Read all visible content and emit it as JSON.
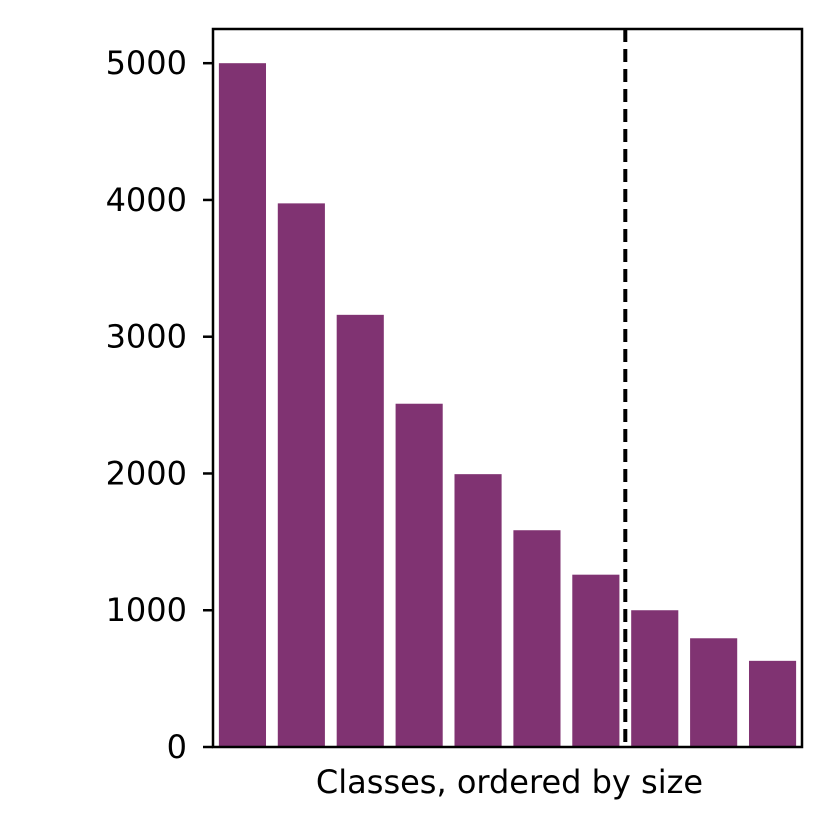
{
  "chart_data": {
    "type": "bar",
    "title": "",
    "xlabel": "Classes, ordered by size",
    "ylabel": "",
    "values": [
      5000,
      3975,
      3160,
      2510,
      1995,
      1585,
      1260,
      1000,
      795,
      630
    ],
    "ylim": [
      0,
      5250
    ],
    "yticks": [
      0,
      1000,
      2000,
      3000,
      4000,
      5000
    ],
    "ytick_labels": [
      "0",
      "1000",
      "2000",
      "3000",
      "4000",
      "5000"
    ],
    "grid": false,
    "bar_color": "#803372",
    "cutoff_line": {
      "after_bar_index": 6,
      "style": "dashed",
      "color": "#000000"
    }
  }
}
